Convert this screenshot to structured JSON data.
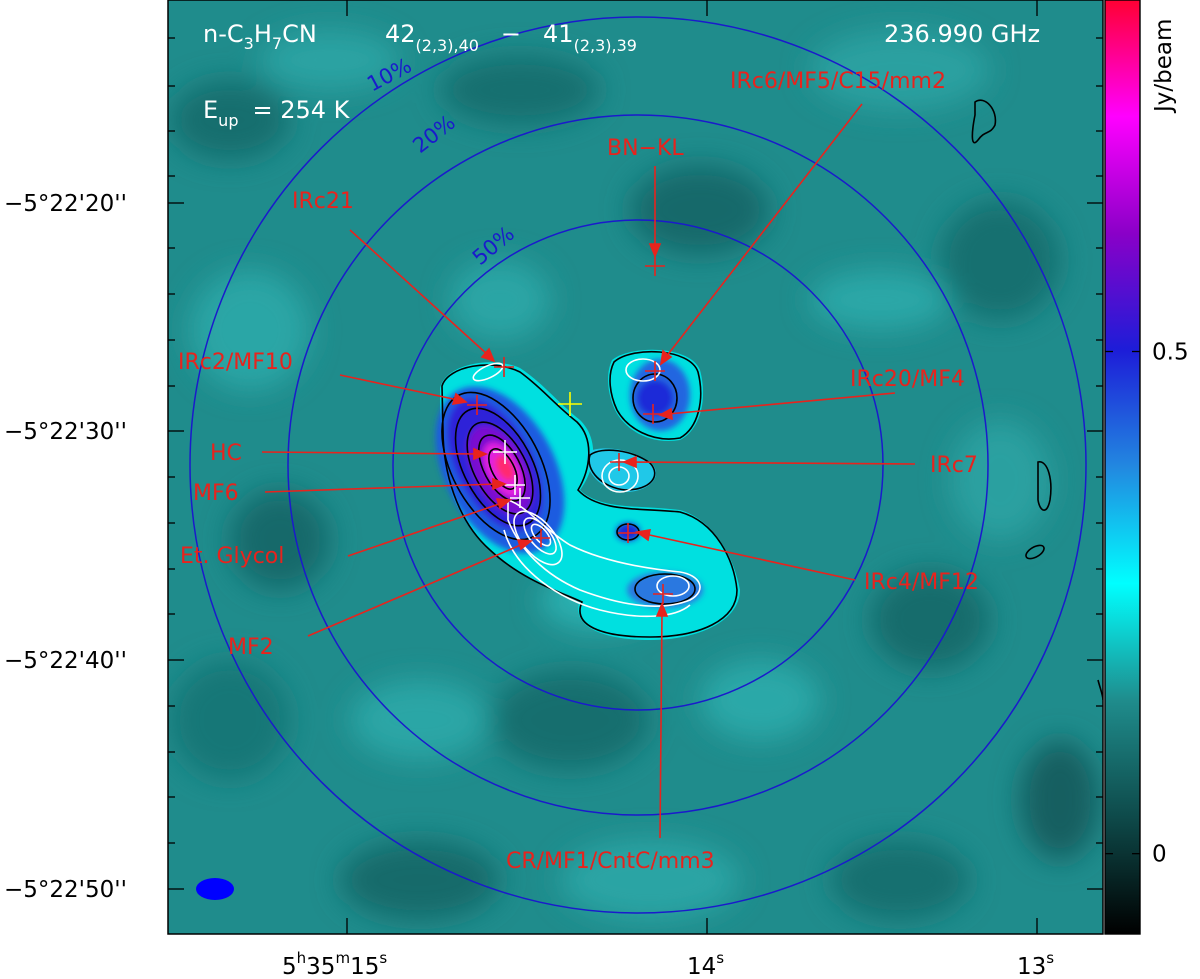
{
  "chart_data": {
    "type": "heatmap",
    "title": {
      "species_main": "n-C",
      "species_sub1": "3",
      "species_mid": "H",
      "species_sub2": "7",
      "species_end": "CN",
      "upper_level": "42",
      "upper_sub": "(2,3),40",
      "dash": "−",
      "lower_level": "41",
      "lower_sub": "(2,3),39",
      "frequency": "236.990 GHz",
      "eup_main": "E",
      "eup_sub": "up",
      "eup_value": "= 254 K"
    },
    "colorbar": {
      "label": "Jy/beam",
      "tick_labels": [
        "0.5",
        "0"
      ],
      "tick_values": [
        0.5,
        0
      ],
      "range": [
        -0.08,
        0.85
      ],
      "colormap": [
        "#000000",
        "#0e4a4a",
        "#1f8c8c",
        "#00ffff",
        "#2288e0",
        "#1d1dd8",
        "#8a00c8",
        "#ff00ff",
        "#ff0033"
      ]
    },
    "x_axis": {
      "ticks": [
        {
          "h": "5",
          "m": "35",
          "s": "15",
          "hu": "h",
          "mu": "m",
          "su": "s"
        },
        {
          "label": "14",
          "su": "s"
        },
        {
          "label": "13",
          "su": "s"
        }
      ]
    },
    "y_axis": {
      "ticks": [
        "−5°22'20''",
        "−5°22'30''",
        "−5°22'40''",
        "−5°22'50''"
      ]
    },
    "primary_beam_levels": [
      "10%",
      "20%",
      "50%"
    ],
    "sources": [
      {
        "name": "BN−KL"
      },
      {
        "name": "IRc6/MF5/C15/mm2"
      },
      {
        "name": "IRc21"
      },
      {
        "name": "IRc2/MF10"
      },
      {
        "name": "IRc20/MF4"
      },
      {
        "name": "HC"
      },
      {
        "name": "IRc7"
      },
      {
        "name": "MF6"
      },
      {
        "name": "Et. Glycol"
      },
      {
        "name": "IRc4/MF12"
      },
      {
        "name": "MF2"
      },
      {
        "name": "CR/MF1/CntC/mm3"
      }
    ],
    "colors": {
      "background_map": "#1f8c8c",
      "primary_beam_circles": "#1a1acc",
      "labels": "#e8231d",
      "beam": "#0000ff",
      "center_cross": "#ffff00"
    }
  }
}
